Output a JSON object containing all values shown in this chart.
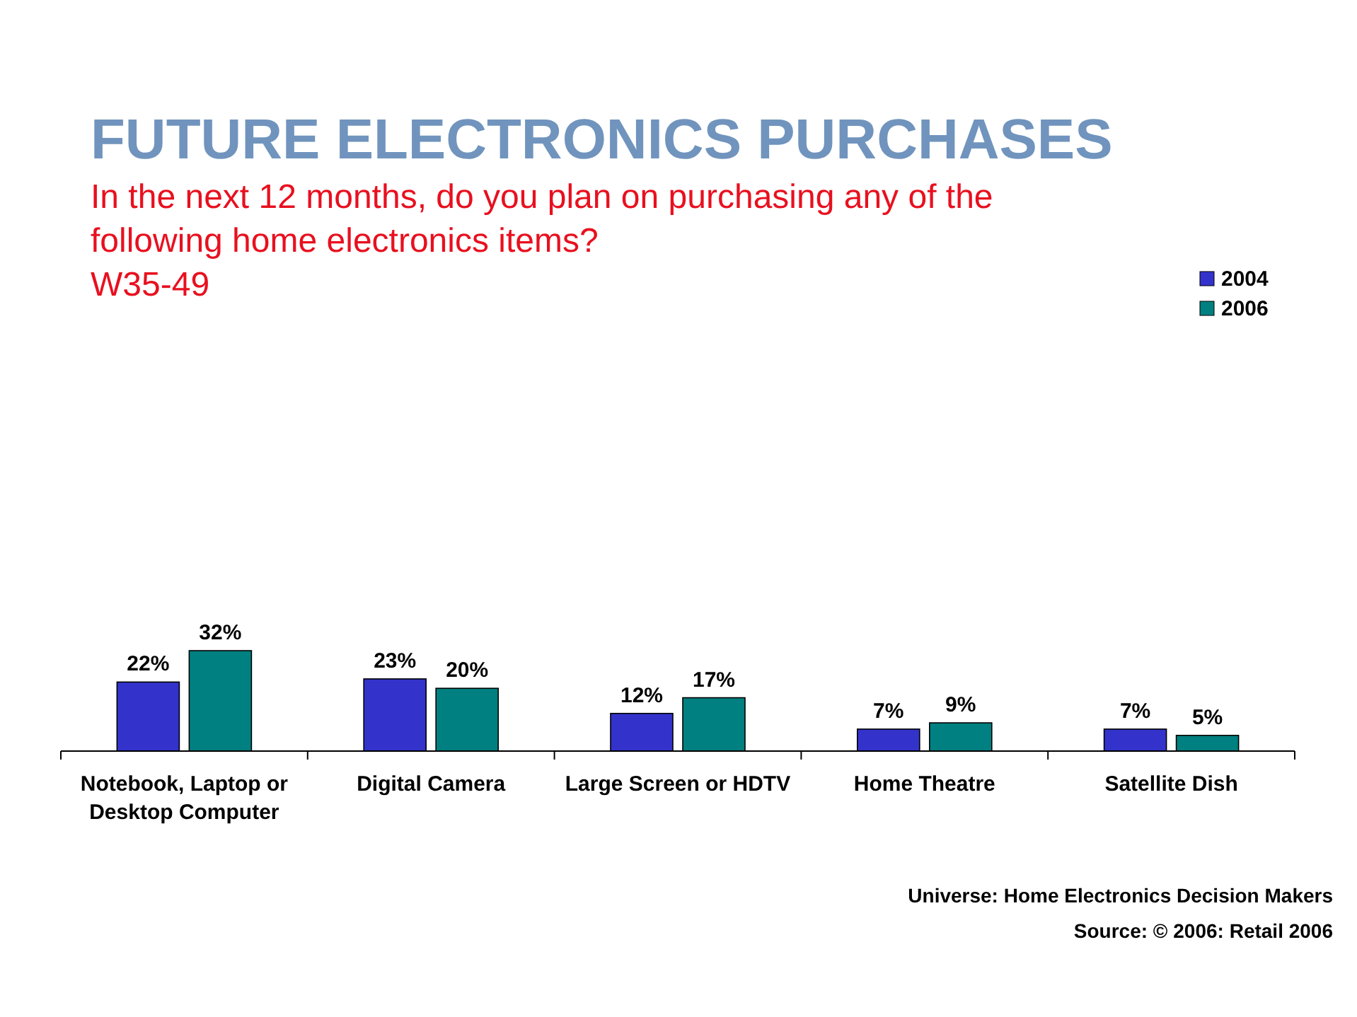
{
  "chart_data": {
    "type": "bar",
    "title": "FUTURE ELECTRONICS PURCHASES",
    "subtitle": "In the next 12 months, do you plan on purchasing any of the following home electronics items?",
    "annotations": [
      "W35-49",
      "Universe: Home Electronics Decision Makers",
      "Source: © 2006: Retail 2006"
    ],
    "categories": [
      "Notebook, Laptop or Desktop Computer",
      "Digital Camera",
      "Large Screen or HDTV",
      "Home Theatre",
      "Satellite Dish"
    ],
    "series": [
      {
        "name": "2004",
        "color": "#3333cc",
        "values": [
          22,
          23,
          12,
          7,
          7
        ],
        "value_labels": [
          "22%",
          "23%",
          "12%",
          "7%",
          "7%"
        ]
      },
      {
        "name": "2006",
        "color": "#008080",
        "values": [
          32,
          20,
          17,
          9,
          5
        ],
        "value_labels": [
          "32%",
          "20%",
          "17%",
          "9%",
          "5%"
        ]
      }
    ],
    "legend": "top right"
  }
}
